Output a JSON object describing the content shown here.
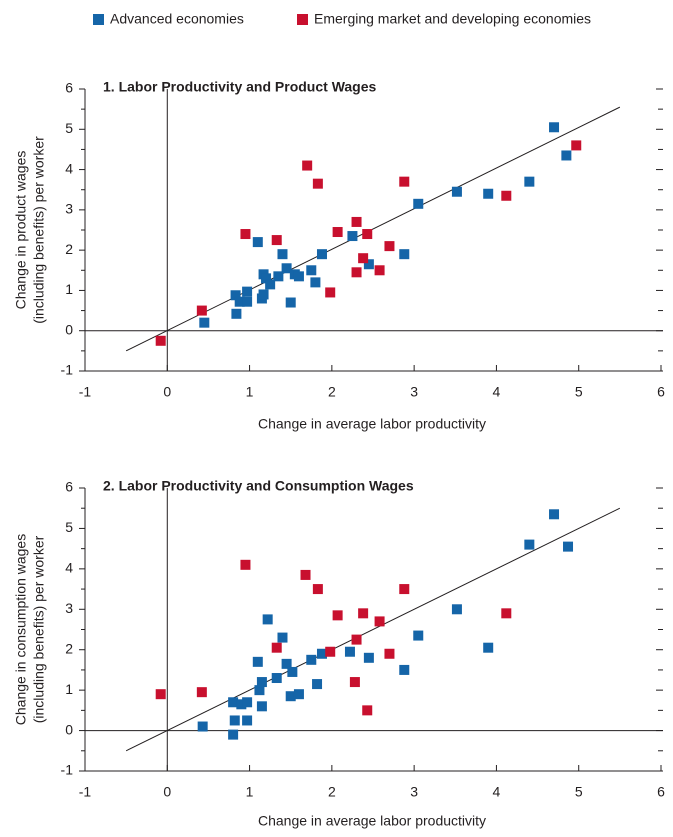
{
  "chart_data": [
    {
      "type": "scatter",
      "title": "1.  Labor Productivity and Product Wages",
      "xlabel": "Change in average labor productivity",
      "ylabel": [
        "Change in product wages",
        "(including benefits) per worker"
      ],
      "xlim": [
        -1,
        6
      ],
      "xticks": [
        -1,
        0,
        1,
        2,
        3,
        4,
        5,
        6
      ],
      "ylim": [
        -1,
        6
      ],
      "yticks": [
        -1,
        0,
        1,
        2,
        3,
        4,
        5,
        6
      ],
      "fit_line": {
        "x": [
          -0.5,
          5.5
        ],
        "y": [
          -0.5,
          5.55
        ]
      },
      "series": [
        {
          "name": "Advanced economies",
          "color": "#1565a8",
          "x": [
            0.45,
            0.83,
            0.84,
            0.88,
            0.97,
            0.97,
            1.1,
            1.15,
            1.17,
            1.17,
            1.2,
            1.25,
            1.35,
            1.4,
            1.45,
            1.5,
            1.55,
            1.6,
            1.75,
            1.8,
            1.88,
            2.25,
            2.45,
            2.88,
            3.05,
            3.52,
            3.9,
            4.4,
            4.7,
            4.85
          ],
          "values": [
            0.2,
            0.88,
            0.42,
            0.72,
            0.97,
            0.72,
            2.2,
            0.8,
            0.9,
            1.4,
            1.3,
            1.15,
            1.35,
            1.9,
            1.55,
            0.7,
            1.4,
            1.35,
            1.5,
            1.2,
            1.9,
            2.35,
            1.65,
            1.9,
            3.15,
            3.45,
            3.4,
            3.7,
            5.05,
            4.35
          ]
        },
        {
          "name": "Emerging market and developing economies",
          "color": "#c8102e",
          "x": [
            -0.08,
            0.42,
            0.95,
            1.33,
            1.7,
            1.83,
            1.98,
            2.07,
            2.3,
            2.3,
            2.38,
            2.43,
            2.58,
            2.7,
            2.88,
            4.12,
            4.97
          ],
          "values": [
            -0.25,
            0.5,
            2.4,
            2.25,
            4.1,
            3.65,
            0.95,
            2.45,
            2.7,
            1.45,
            1.8,
            2.4,
            1.5,
            2.1,
            3.7,
            3.35,
            4.6
          ]
        }
      ]
    },
    {
      "type": "scatter",
      "title": "2.  Labor Productivity and Consumption Wages",
      "xlabel": "Change in average labor productivity",
      "ylabel": [
        "Change in consumption wages",
        "(including benefits) per worker"
      ],
      "xlim": [
        -1,
        6
      ],
      "xticks": [
        -1,
        0,
        1,
        2,
        3,
        4,
        5,
        6
      ],
      "ylim": [
        -1,
        6
      ],
      "yticks": [
        -1,
        0,
        1,
        2,
        3,
        4,
        5,
        6
      ],
      "fit_line": {
        "x": [
          -0.5,
          5.5
        ],
        "y": [
          -0.5,
          5.5
        ]
      },
      "series": [
        {
          "name": "Advanced economies",
          "color": "#1565a8",
          "x": [
            0.43,
            0.8,
            0.8,
            0.82,
            0.9,
            0.97,
            0.97,
            1.1,
            1.12,
            1.15,
            1.15,
            1.22,
            1.33,
            1.4,
            1.45,
            1.5,
            1.52,
            1.6,
            1.75,
            1.82,
            1.88,
            2.22,
            2.45,
            2.88,
            3.05,
            3.52,
            3.9,
            4.4,
            4.7,
            4.87
          ],
          "values": [
            0.1,
            0.7,
            -0.1,
            0.25,
            0.65,
            0.25,
            0.7,
            1.7,
            1.0,
            0.6,
            1.2,
            2.75,
            1.3,
            2.3,
            1.65,
            0.85,
            1.45,
            0.9,
            1.75,
            1.15,
            1.9,
            1.95,
            1.8,
            1.5,
            2.35,
            3.0,
            2.05,
            4.6,
            5.35,
            4.55
          ]
        },
        {
          "name": "Emerging market and developing economies",
          "color": "#c8102e",
          "x": [
            -0.08,
            0.42,
            0.95,
            1.33,
            1.68,
            1.83,
            1.98,
            2.07,
            2.3,
            2.28,
            2.38,
            2.43,
            2.58,
            2.7,
            2.88,
            4.12
          ],
          "values": [
            0.9,
            0.95,
            4.1,
            2.05,
            3.85,
            3.5,
            1.95,
            2.85,
            2.25,
            1.2,
            2.9,
            0.5,
            2.7,
            1.9,
            3.5,
            2.9
          ]
        }
      ]
    }
  ]
}
